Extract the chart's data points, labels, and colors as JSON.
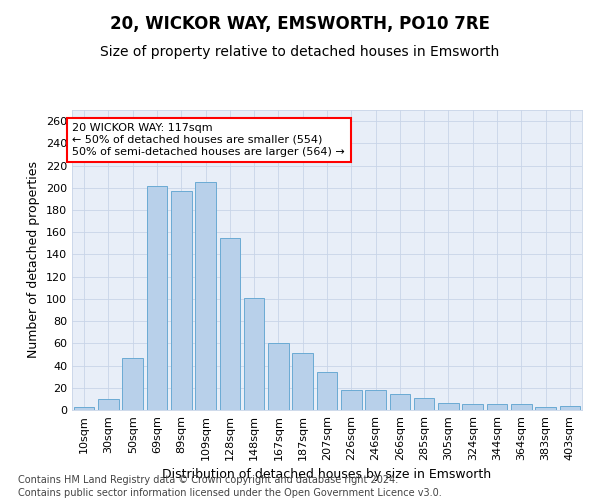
{
  "title1": "20, WICKOR WAY, EMSWORTH, PO10 7RE",
  "title2": "Size of property relative to detached houses in Emsworth",
  "xlabel": "Distribution of detached houses by size in Emsworth",
  "ylabel": "Number of detached properties",
  "categories": [
    "10sqm",
    "30sqm",
    "50sqm",
    "69sqm",
    "89sqm",
    "109sqm",
    "128sqm",
    "148sqm",
    "167sqm",
    "187sqm",
    "207sqm",
    "226sqm",
    "246sqm",
    "266sqm",
    "285sqm",
    "305sqm",
    "324sqm",
    "344sqm",
    "364sqm",
    "383sqm",
    "403sqm"
  ],
  "values": [
    3,
    10,
    47,
    202,
    197,
    205,
    155,
    101,
    60,
    51,
    34,
    18,
    18,
    14,
    11,
    6,
    5,
    5,
    5,
    3,
    4
  ],
  "bar_color": "#b8d0ea",
  "bar_edge_color": "#6aaad4",
  "annotation_text": "20 WICKOR WAY: 117sqm\n← 50% of detached houses are smaller (554)\n50% of semi-detached houses are larger (564) →",
  "annotation_box_color": "white",
  "annotation_box_edge_color": "red",
  "ylim": [
    0,
    270
  ],
  "yticks": [
    0,
    20,
    40,
    60,
    80,
    100,
    120,
    140,
    160,
    180,
    200,
    220,
    240,
    260
  ],
  "grid_color": "#c8d4e8",
  "bg_color": "#e8eef8",
  "footnote1": "Contains HM Land Registry data © Crown copyright and database right 2024.",
  "footnote2": "Contains public sector information licensed under the Open Government Licence v3.0.",
  "title1_fontsize": 12,
  "title2_fontsize": 10,
  "xlabel_fontsize": 9,
  "ylabel_fontsize": 9,
  "tick_fontsize": 8,
  "annotation_fontsize": 8,
  "footnote_fontsize": 7
}
